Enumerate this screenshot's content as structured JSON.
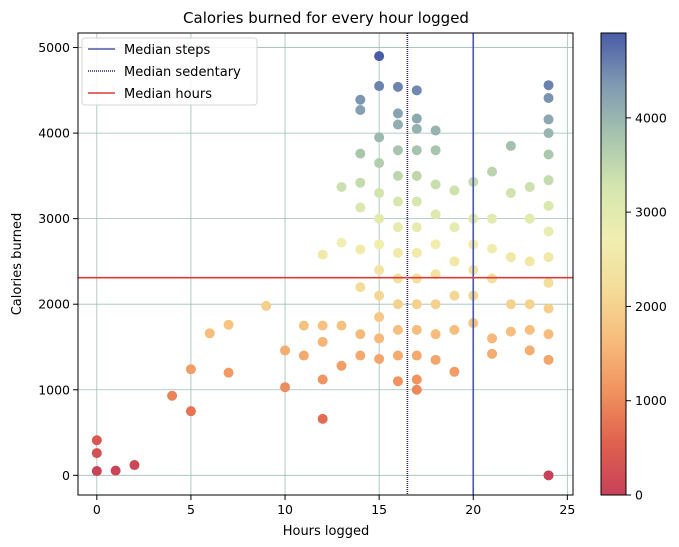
{
  "chart_data": {
    "type": "scatter",
    "title": "Calories burned for every hour logged",
    "xlabel": "Hours logged",
    "ylabel": "Calories burned",
    "xlim": [
      -1,
      25.3
    ],
    "ylim": [
      -230,
      5170
    ],
    "xticks": [
      0,
      5,
      10,
      15,
      20,
      25
    ],
    "yticks": [
      0,
      1000,
      2000,
      3000,
      4000,
      5000
    ],
    "grid": true,
    "grid_color": "#9fbfb0",
    "legend_position": "top-left",
    "colorbar": {
      "cmap": "Spectral",
      "range": [
        0,
        4900
      ],
      "ticks": [
        0,
        1000,
        2000,
        3000,
        4000
      ],
      "colors": [
        "#c8415a",
        "#e0604e",
        "#f0925e",
        "#f7bb7a",
        "#f4dc98",
        "#f0eeb0",
        "#d4e6ae",
        "#a6c4ae",
        "#7f99b2",
        "#4a5ca8"
      ]
    },
    "reference_lines": [
      {
        "label": "Median steps",
        "orientation": "vertical",
        "value": 20,
        "color": "#4b57a8",
        "style": "solid"
      },
      {
        "label": "Median sedentary",
        "orientation": "vertical",
        "value": 16.5,
        "color": "#2d1e6b",
        "style": "dotted"
      },
      {
        "label": "Median hours",
        "orientation": "horizontal",
        "value": 2310,
        "color": "#e03a3a",
        "style": "solid"
      }
    ],
    "points": [
      [
        0,
        50
      ],
      [
        0,
        260
      ],
      [
        0,
        410
      ],
      [
        1,
        55
      ],
      [
        2,
        120
      ],
      [
        4,
        930
      ],
      [
        5,
        750
      ],
      [
        5,
        1240
      ],
      [
        6,
        1660
      ],
      [
        7,
        1200
      ],
      [
        7,
        1760
      ],
      [
        9,
        1980
      ],
      [
        10,
        1030
      ],
      [
        10,
        1460
      ],
      [
        11,
        1400
      ],
      [
        11,
        1750
      ],
      [
        12,
        660
      ],
      [
        12,
        1120
      ],
      [
        12,
        1560
      ],
      [
        12,
        1750
      ],
      [
        12,
        2580
      ],
      [
        13,
        1280
      ],
      [
        13,
        1750
      ],
      [
        13,
        2720
      ],
      [
        13,
        3370
      ],
      [
        14,
        1400
      ],
      [
        14,
        1650
      ],
      [
        14,
        2200
      ],
      [
        14,
        2640
      ],
      [
        14,
        3130
      ],
      [
        14,
        3420
      ],
      [
        14,
        3760
      ],
      [
        14,
        4270
      ],
      [
        14,
        4390
      ],
      [
        15,
        1360
      ],
      [
        15,
        1600
      ],
      [
        15,
        1850
      ],
      [
        15,
        2100
      ],
      [
        15,
        2400
      ],
      [
        15,
        2700
      ],
      [
        15,
        3000
      ],
      [
        15,
        3300
      ],
      [
        15,
        3650
      ],
      [
        15,
        3950
      ],
      [
        15,
        4550
      ],
      [
        15,
        4900
      ],
      [
        16,
        1100
      ],
      [
        16,
        1400
      ],
      [
        16,
        1700
      ],
      [
        16,
        2000
      ],
      [
        16,
        2300
      ],
      [
        16,
        2600
      ],
      [
        16,
        2900
      ],
      [
        16,
        3200
      ],
      [
        16,
        3500
      ],
      [
        16,
        3800
      ],
      [
        16,
        4100
      ],
      [
        16,
        4230
      ],
      [
        16,
        4540
      ],
      [
        17,
        1000
      ],
      [
        17,
        1120
      ],
      [
        17,
        1400
      ],
      [
        17,
        1700
      ],
      [
        17,
        2000
      ],
      [
        17,
        2300
      ],
      [
        17,
        2600
      ],
      [
        17,
        2900
      ],
      [
        17,
        3200
      ],
      [
        17,
        3500
      ],
      [
        17,
        3800
      ],
      [
        17,
        4050
      ],
      [
        17,
        4170
      ],
      [
        17,
        4500
      ],
      [
        18,
        1350
      ],
      [
        18,
        1650
      ],
      [
        18,
        2000
      ],
      [
        18,
        2350
      ],
      [
        18,
        2700
      ],
      [
        18,
        3050
      ],
      [
        18,
        3400
      ],
      [
        18,
        3800
      ],
      [
        18,
        4030
      ],
      [
        19,
        1210
      ],
      [
        19,
        1700
      ],
      [
        19,
        2100
      ],
      [
        19,
        2500
      ],
      [
        19,
        2900
      ],
      [
        19,
        3330
      ],
      [
        20,
        1780
      ],
      [
        20,
        2100
      ],
      [
        20,
        2400
      ],
      [
        20,
        2700
      ],
      [
        20,
        3000
      ],
      [
        20,
        3430
      ],
      [
        21,
        1420
      ],
      [
        21,
        1600
      ],
      [
        21,
        2300
      ],
      [
        21,
        2650
      ],
      [
        21,
        3000
      ],
      [
        21,
        3550
      ],
      [
        22,
        1680
      ],
      [
        22,
        2000
      ],
      [
        22,
        2550
      ],
      [
        22,
        3300
      ],
      [
        22,
        3850
      ],
      [
        23,
        1460
      ],
      [
        23,
        1700
      ],
      [
        23,
        2000
      ],
      [
        23,
        2500
      ],
      [
        23,
        3000
      ],
      [
        23,
        3370
      ],
      [
        24,
        0
      ],
      [
        24,
        1350
      ],
      [
        24,
        1650
      ],
      [
        24,
        1950
      ],
      [
        24,
        2250
      ],
      [
        24,
        2550
      ],
      [
        24,
        2850
      ],
      [
        24,
        3150
      ],
      [
        24,
        3450
      ],
      [
        24,
        3750
      ],
      [
        24,
        4000
      ],
      [
        24,
        4160
      ],
      [
        24,
        4410
      ],
      [
        24,
        4560
      ]
    ]
  }
}
